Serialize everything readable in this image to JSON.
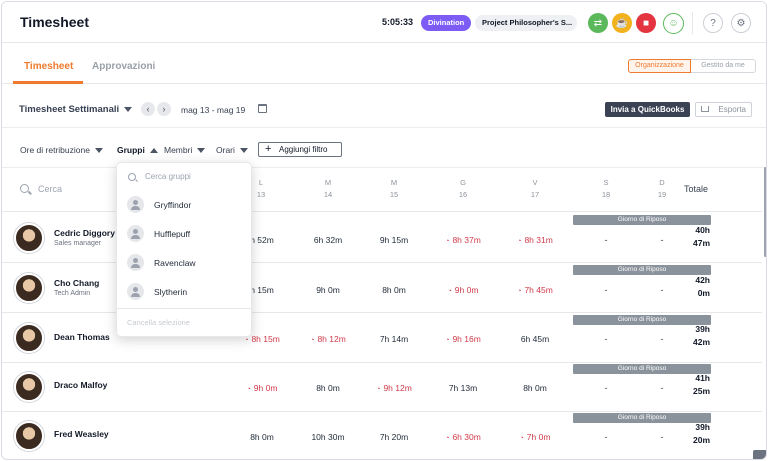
{
  "header": {
    "title": "Timesheet",
    "timer": "5:05:33",
    "activity": "Divination",
    "project": "Project Philosopher's S...",
    "icons": [
      "switch-icon",
      "coffee-icon",
      "stop-icon",
      "user-status-icon",
      "help-icon",
      "settings-icon"
    ]
  },
  "tabs": {
    "active": "Timesheet",
    "inactive": "Approvazioni",
    "seg_active": "Organizzazione",
    "seg_inactive": "Gestito da me"
  },
  "toolbar": {
    "view": "Timesheet Settimanali",
    "date_range": "mag 13 - mag 19",
    "quickbooks": "Invia a QuickBooks",
    "export": "Esporta"
  },
  "filters": {
    "pay": "Ore di retribuzione",
    "groups": "Gruppi",
    "members": "Membri",
    "schedules": "Orari",
    "add": "Aggiungi filtro"
  },
  "table": {
    "search_placeholder": "Cerca",
    "total_label": "Totale",
    "days": [
      {
        "letter": "L",
        "num": "13"
      },
      {
        "letter": "M",
        "num": "14"
      },
      {
        "letter": "M",
        "num": "15"
      },
      {
        "letter": "G",
        "num": "16"
      },
      {
        "letter": "V",
        "num": "17"
      },
      {
        "letter": "S",
        "num": "18"
      },
      {
        "letter": "D",
        "num": "19"
      }
    ],
    "rest_label": "Giorno di Riposo",
    "rows": [
      {
        "name": "Cedric Diggory",
        "role": "Sales manager",
        "cells": [
          "h 52m",
          "6h 32m",
          "9h 15m",
          "8h 37m",
          "8h 31m"
        ],
        "overtime": [
          false,
          false,
          false,
          true,
          true
        ],
        "sat": "-",
        "sun": "-",
        "total_h": "40h",
        "total_m": "47m"
      },
      {
        "name": "Cho Chang",
        "role": "Tech Admin",
        "cells": [
          "h 15m",
          "9h 0m",
          "8h 0m",
          "9h 0m",
          "7h 45m"
        ],
        "overtime": [
          false,
          false,
          false,
          true,
          true
        ],
        "sat": "-",
        "sun": "-",
        "total_h": "42h",
        "total_m": "0m"
      },
      {
        "name": "Dean Thomas",
        "role": "",
        "cells": [
          "8h 15m",
          "8h 12m",
          "7h 14m",
          "9h 16m",
          "6h 45m"
        ],
        "overtime": [
          true,
          true,
          false,
          true,
          false
        ],
        "sat": "-",
        "sun": "-",
        "total_h": "39h",
        "total_m": "42m"
      },
      {
        "name": "Draco Malfoy",
        "role": "",
        "cells": [
          "9h 0m",
          "8h 0m",
          "9h 12m",
          "7h 13m",
          "8h 0m"
        ],
        "overtime": [
          true,
          false,
          true,
          false,
          false
        ],
        "sat": "-",
        "sun": "-",
        "total_h": "41h",
        "total_m": "25m"
      },
      {
        "name": "Fred Weasley",
        "role": "",
        "cells": [
          "8h 0m",
          "10h 30m",
          "7h 20m",
          "6h 30m",
          "7h 0m"
        ],
        "overtime": [
          false,
          false,
          false,
          true,
          true
        ],
        "sat": "-",
        "sun": "-",
        "total_h": "39h",
        "total_m": "20m"
      }
    ]
  },
  "groups_dropdown": {
    "search_placeholder": "Cerca gruppi",
    "items": [
      "Gryffindor",
      "Hufflepuff",
      "Ravenclaw",
      "Slytherin"
    ],
    "clear": "Cancella selezione"
  }
}
